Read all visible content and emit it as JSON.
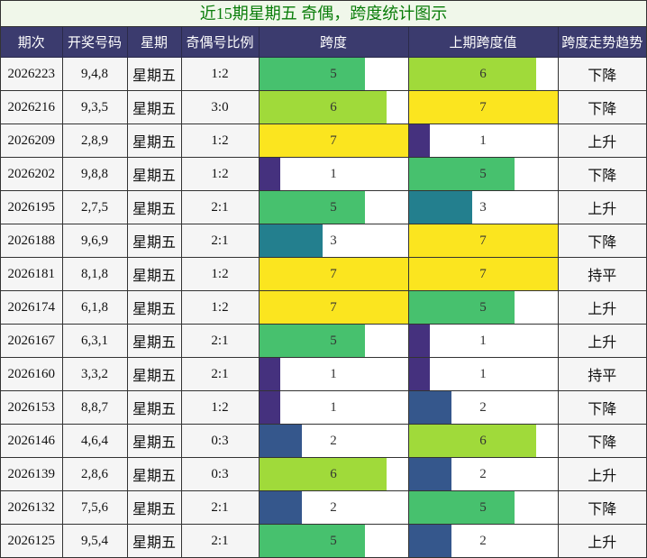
{
  "title": "近15期星期五 奇偶，跨度统计图示",
  "headers": [
    "期次",
    "开奖号码",
    "星期",
    "奇偶号比例",
    "跨度",
    "上期跨度值",
    "跨度走势趋势"
  ],
  "colors": {
    "1": "#45317e",
    "2": "#35578c",
    "3": "#237f8e",
    "5": "#47c16e",
    "6": "#a0da3a",
    "7": "#fbe51f"
  },
  "chart_data": {
    "type": "table",
    "columns": [
      "期次",
      "开奖号码",
      "星期",
      "奇偶号比例",
      "跨度",
      "上期跨度值",
      "跨度走势趋势"
    ],
    "bar_max": 7,
    "rows": [
      {
        "issue": "2026223",
        "numbers": "9,4,8",
        "weekday": "星期五",
        "ratio": "1:2",
        "span": 5,
        "prev_span": 6,
        "trend": "下降"
      },
      {
        "issue": "2026216",
        "numbers": "9,3,5",
        "weekday": "星期五",
        "ratio": "3:0",
        "span": 6,
        "prev_span": 7,
        "trend": "下降"
      },
      {
        "issue": "2026209",
        "numbers": "2,8,9",
        "weekday": "星期五",
        "ratio": "1:2",
        "span": 7,
        "prev_span": 1,
        "trend": "上升"
      },
      {
        "issue": "2026202",
        "numbers": "9,8,8",
        "weekday": "星期五",
        "ratio": "1:2",
        "span": 1,
        "prev_span": 5,
        "trend": "下降"
      },
      {
        "issue": "2026195",
        "numbers": "2,7,5",
        "weekday": "星期五",
        "ratio": "2:1",
        "span": 5,
        "prev_span": 3,
        "trend": "上升"
      },
      {
        "issue": "2026188",
        "numbers": "9,6,9",
        "weekday": "星期五",
        "ratio": "2:1",
        "span": 3,
        "prev_span": 7,
        "trend": "下降"
      },
      {
        "issue": "2026181",
        "numbers": "8,1,8",
        "weekday": "星期五",
        "ratio": "1:2",
        "span": 7,
        "prev_span": 7,
        "trend": "持平"
      },
      {
        "issue": "2026174",
        "numbers": "6,1,8",
        "weekday": "星期五",
        "ratio": "1:2",
        "span": 7,
        "prev_span": 5,
        "trend": "上升"
      },
      {
        "issue": "2026167",
        "numbers": "6,3,1",
        "weekday": "星期五",
        "ratio": "2:1",
        "span": 5,
        "prev_span": 1,
        "trend": "上升"
      },
      {
        "issue": "2026160",
        "numbers": "3,3,2",
        "weekday": "星期五",
        "ratio": "2:1",
        "span": 1,
        "prev_span": 1,
        "trend": "持平"
      },
      {
        "issue": "2026153",
        "numbers": "8,8,7",
        "weekday": "星期五",
        "ratio": "1:2",
        "span": 1,
        "prev_span": 2,
        "trend": "下降"
      },
      {
        "issue": "2026146",
        "numbers": "4,6,4",
        "weekday": "星期五",
        "ratio": "0:3",
        "span": 2,
        "prev_span": 6,
        "trend": "下降"
      },
      {
        "issue": "2026139",
        "numbers": "2,8,6",
        "weekday": "星期五",
        "ratio": "0:3",
        "span": 6,
        "prev_span": 2,
        "trend": "上升"
      },
      {
        "issue": "2026132",
        "numbers": "7,5,6",
        "weekday": "星期五",
        "ratio": "2:1",
        "span": 2,
        "prev_span": 5,
        "trend": "下降"
      },
      {
        "issue": "2026125",
        "numbers": "9,5,4",
        "weekday": "星期五",
        "ratio": "2:1",
        "span": 5,
        "prev_span": 2,
        "trend": "上升"
      }
    ]
  }
}
